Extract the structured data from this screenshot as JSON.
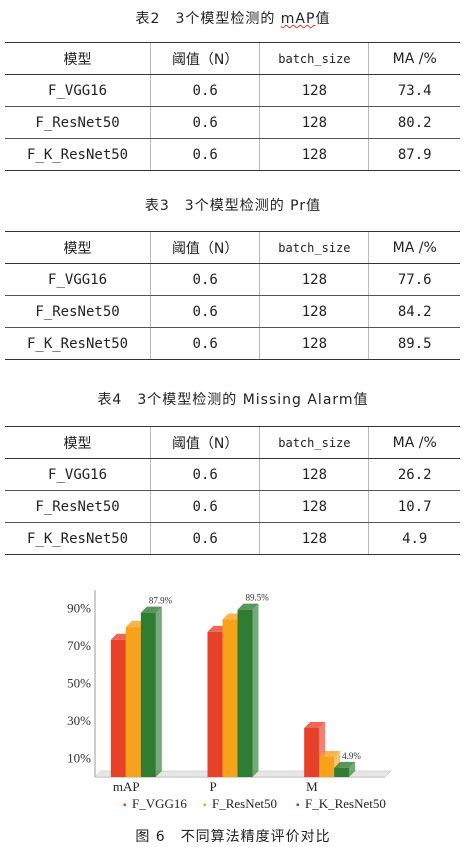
{
  "table2": {
    "caption_prefix": "表2　3个模型检测的 ",
    "caption_metric": "mAP",
    "caption_suffix": "值",
    "headers": [
      "模型",
      "阈值（N）",
      "batch_size",
      "MA /%"
    ],
    "rows": [
      [
        "F_VGG16",
        "0.6",
        "128",
        "73.4"
      ],
      [
        "F_ResNet50",
        "0.6",
        "128",
        "80.2"
      ],
      [
        "F_K_ResNet50",
        "0.6",
        "128",
        "87.9"
      ]
    ]
  },
  "table3": {
    "caption": "表3　3个模型检测的 Pr值",
    "headers": [
      "模型",
      "阈值（N）",
      "batch_size",
      "MA /%"
    ],
    "rows": [
      [
        "F_VGG16",
        "0.6",
        "128",
        "77.6"
      ],
      [
        "F_ResNet50",
        "0.6",
        "128",
        "84.2"
      ],
      [
        "F_K_ResNet50",
        "0.6",
        "128",
        "89.5"
      ]
    ]
  },
  "table4": {
    "caption": "表4　3个模型检测的 Missing Alarm值",
    "headers": [
      "模型",
      "阈值（N）",
      "batch_size",
      "MA /%"
    ],
    "rows": [
      [
        "F_VGG16",
        "0.6",
        "128",
        "26.2"
      ],
      [
        "F_ResNet50",
        "0.6",
        "128",
        "10.7"
      ],
      [
        "F_K_ResNet50",
        "0.6",
        "128",
        "4.9"
      ]
    ]
  },
  "figure_caption": "图 6　不同算法精度评价对比",
  "chart_data": {
    "type": "bar",
    "categories": [
      "mAP",
      "P",
      "M"
    ],
    "series": [
      {
        "name": "F_VGG16",
        "values": [
          73.4,
          77.6,
          26.2
        ],
        "color": "#e8412a"
      },
      {
        "name": "F_ResNet50",
        "values": [
          80.2,
          84.2,
          10.7
        ],
        "color": "#f7a21b"
      },
      {
        "name": "F_K_ResNet50",
        "values": [
          87.9,
          89.5,
          4.9
        ],
        "color": "#2e7d32"
      }
    ],
    "y_ticks": [
      "10%",
      "30%",
      "50%",
      "70%",
      "90%"
    ],
    "data_labels": [
      "87.9%",
      "89.5%",
      "4.9%"
    ],
    "ylim": [
      0,
      100
    ],
    "legend_placement": "bottom"
  }
}
